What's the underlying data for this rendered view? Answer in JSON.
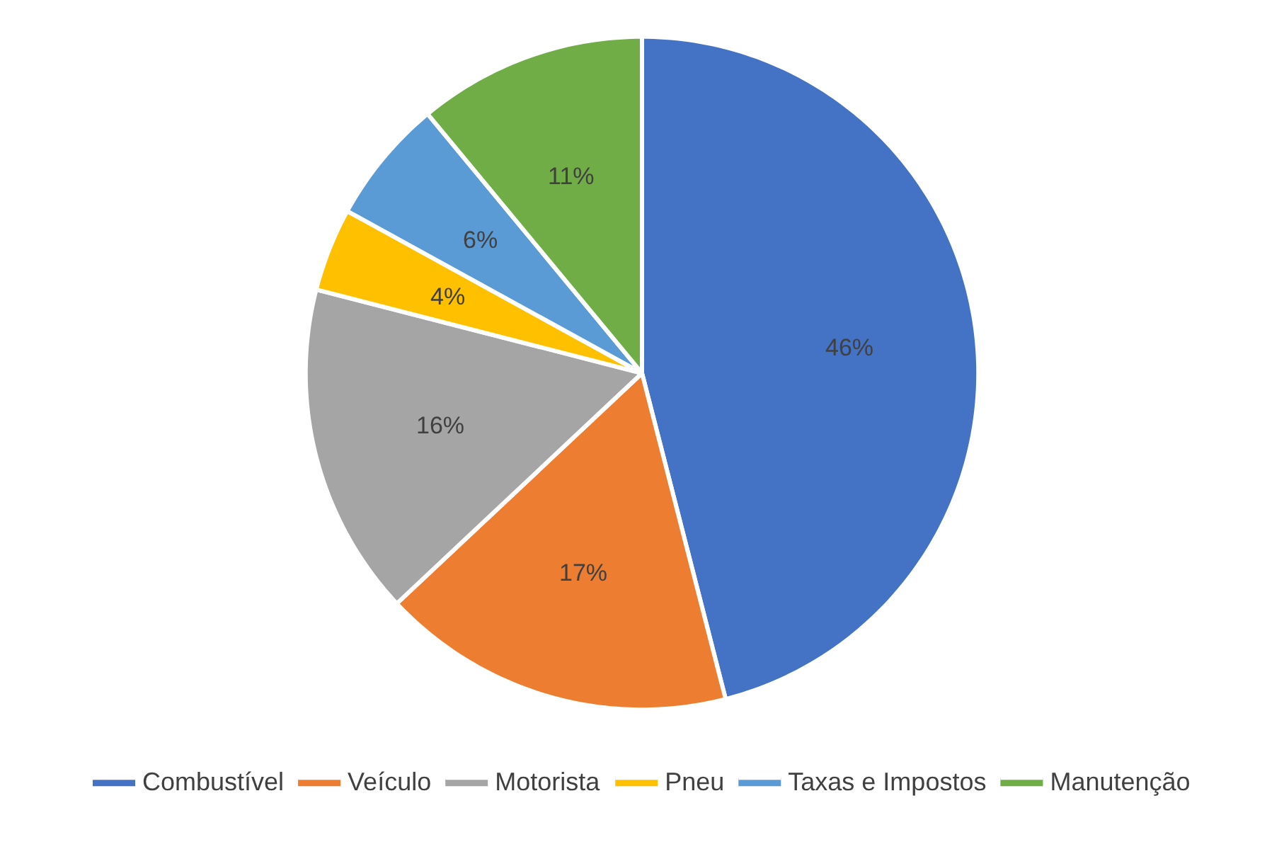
{
  "chart_data": {
    "type": "pie",
    "categories": [
      "Combustível",
      "Veículo",
      "Motorista",
      "Pneu",
      "Taxas e Impostos",
      "Manutenção"
    ],
    "values": [
      46,
      17,
      16,
      4,
      6,
      11
    ],
    "value_labels": [
      "46%",
      "17%",
      "16%",
      "4%",
      "6%",
      "11%"
    ],
    "colors": [
      "#4472c4",
      "#ed7d31",
      "#a5a5a5",
      "#ffc000",
      "#5b9bd5",
      "#70ad47"
    ],
    "legend": "bottom"
  }
}
